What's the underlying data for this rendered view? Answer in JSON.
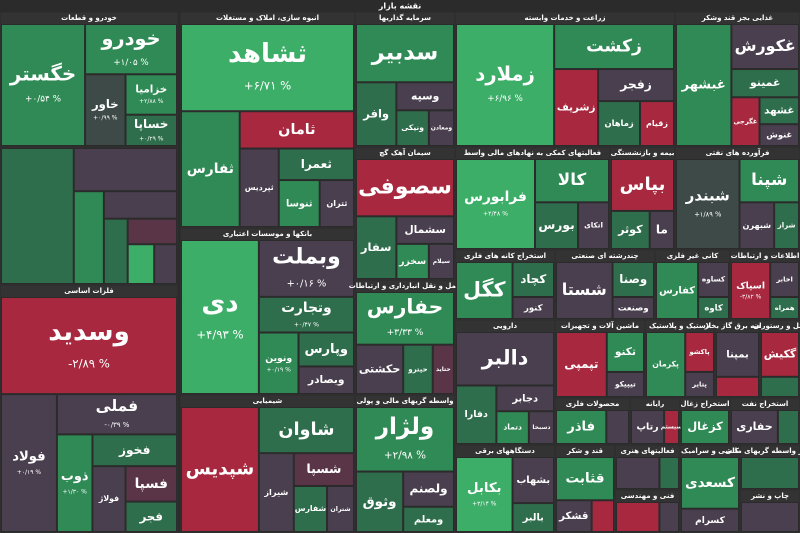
{
  "chart_data": {
    "type": "treemap",
    "title": "نقشه بازار",
    "sectors": [
      {
        "name": "خودرو و قطعات",
        "tiles": [
          {
            "name": "خگستر",
            "value": 0.54,
            "value_label": "+۰/۵۴ %",
            "color": "#2f8a55"
          },
          {
            "name": "خودرو",
            "value": 1.05,
            "value_label": "+۱/۰۵ %",
            "color": "#2f8a55"
          },
          {
            "name": "خاور",
            "value": 0.99,
            "value_label": "+۰/۹۹ %",
            "color": "#3e4a47"
          },
          {
            "name": "خزامیا",
            "value": 2.88,
            "value_label": "+۲/۸۸ %",
            "color": "#2f8a55"
          },
          {
            "name": "خساپا",
            "value": 0.29,
            "value_label": "+۰/۲۹ %",
            "color": "#2f6e4c"
          }
        ]
      },
      {
        "name": null,
        "tiles": [
          {
            "name": null,
            "color": "#2f6e4c"
          },
          {
            "name": null,
            "color": "#4a3f4f"
          },
          {
            "name": null,
            "color": "#2f8a55"
          },
          {
            "name": null,
            "color": "#4a3f4f"
          },
          {
            "name": null,
            "color": "#2f6e4c"
          },
          {
            "name": null,
            "color": "#5a3547"
          },
          {
            "name": null,
            "color": "#3cae68"
          },
          {
            "name": null,
            "color": "#4a3f4f"
          }
        ]
      },
      {
        "name": "فلزات اساسی",
        "tiles": [
          {
            "name": "وسدید",
            "value": -2.89,
            "value_label": "-۲/۸۹ %",
            "color": "#a8283f"
          },
          {
            "name": "فولاد",
            "value": 0.19,
            "value_label": "+۰/۱۹ %",
            "color": "#4a3f4f"
          },
          {
            "name": "فملی",
            "value": -0.39,
            "value_label": "-۰/۳۹ %",
            "color": "#4a3f4f"
          },
          {
            "name": "ذوب",
            "value": 1.3,
            "value_label": "+۱/۳۰ %",
            "color": "#2f8a55"
          },
          {
            "name": "فخوز",
            "color": "#2f6e4c"
          },
          {
            "name": "فولاژ",
            "color": "#4a3f4f"
          },
          {
            "name": "فسپا",
            "color": "#5a3547"
          },
          {
            "name": "فجر",
            "color": "#2f6e4c"
          }
        ]
      },
      {
        "name": "انبوه سازی، املاک و مستغلات",
        "tiles": [
          {
            "name": "ثشاهد",
            "value": 6.71,
            "value_label": "+۶/۷۱ %",
            "color": "#3cae68"
          },
          {
            "name": "ثفارس",
            "color": "#2f8a55"
          },
          {
            "name": "ثامان",
            "color": "#a8283f"
          },
          {
            "name": "ثپردیس",
            "color": "#4a3f4f"
          },
          {
            "name": "ثعمرا",
            "color": "#2f6e4c"
          },
          {
            "name": "ثنوسا",
            "color": "#2f8a55"
          },
          {
            "name": "ثتران",
            "color": "#4a3f4f"
          }
        ]
      },
      {
        "name": "بانکها و موسسات اعتباری",
        "tiles": [
          {
            "name": "دی",
            "value": 4.93,
            "value_label": "+۴/۹۳ %",
            "color": "#3cae68"
          },
          {
            "name": "وبملت",
            "value": 0.16,
            "value_label": "+۰/۱۶ %",
            "color": "#4a3f4f"
          },
          {
            "name": "وتجارت",
            "value": 0.47,
            "value_label": "+۰/۴۷ %",
            "color": "#2f6e4c"
          },
          {
            "name": "ونوین",
            "value": 0.19,
            "value_label": "+۰/۱۹ %",
            "color": "#2f8a55"
          },
          {
            "name": "وپارس",
            "color": "#2f6e4c"
          },
          {
            "name": "وبصادر",
            "color": "#4a3f4f"
          }
        ]
      },
      {
        "name": "شیمیایی",
        "tiles": [
          {
            "name": "شپدیس",
            "color": "#a8283f"
          },
          {
            "name": "شاوان",
            "color": "#2f6e4c"
          },
          {
            "name": "شیراز",
            "color": "#4a3f4f"
          },
          {
            "name": "شسپا",
            "color": "#5a3547"
          },
          {
            "name": "شفارس",
            "color": "#2f6e4c"
          },
          {
            "name": "شتران",
            "color": "#4a3f4f"
          }
        ]
      },
      {
        "name": "سرمایه گذاریها",
        "tiles": [
          {
            "name": "سدبیر",
            "color": "#2f8a55"
          },
          {
            "name": "وافر",
            "color": "#2f6e4c"
          },
          {
            "name": "وسپه",
            "color": "#4a3f4f"
          },
          {
            "name": "ونیکی",
            "color": "#2f6e4c"
          },
          {
            "name": "ومعادن",
            "color": "#4a3f4f"
          }
        ]
      },
      {
        "name": "سیمان آهک گچ",
        "tiles": [
          {
            "name": "سصوفی",
            "color": "#a8283f"
          },
          {
            "name": "سفار",
            "color": "#2f6e4c"
          },
          {
            "name": "سشمال",
            "color": "#4a3f4f"
          },
          {
            "name": "سخزر",
            "color": "#2f8a55"
          },
          {
            "name": "سیلام",
            "color": "#4a3f4f"
          }
        ]
      },
      {
        "name": "حمل و نقل انبارداری و ارتباطات",
        "tiles": [
          {
            "name": "حفارس",
            "value": 3.33,
            "value_label": "+۳/۳۳ %",
            "color": "#2f8a55"
          },
          {
            "name": "حکشتی",
            "color": "#4a3f4f"
          },
          {
            "name": "حپترو",
            "color": "#2f6e4c"
          },
          {
            "name": "حتاید",
            "color": "#5a3547"
          }
        ]
      },
      {
        "name": "واسطه گریهای مالی و پولی",
        "tiles": [
          {
            "name": "ولژار",
            "value": 2.98,
            "value_label": "+۲/۹۸ %",
            "color": "#2f8a55"
          },
          {
            "name": "وثوق",
            "color": "#2f6e4c"
          },
          {
            "name": "ولصنم",
            "color": "#4a3f4f"
          },
          {
            "name": "ومعلم",
            "color": "#2f6e4c"
          }
        ]
      },
      {
        "name": "زراعت و خدمات وابسته",
        "tiles": [
          {
            "name": "زملارد",
            "value": 6.96,
            "value_label": "+۶/۹۶ %",
            "color": "#3cae68"
          },
          {
            "name": "زکشت",
            "color": "#2f8a55"
          },
          {
            "name": "زشریف",
            "color": "#a8283f"
          },
          {
            "name": "زفجر",
            "color": "#4a3f4f"
          },
          {
            "name": "زماهان",
            "color": "#2f6e4c"
          },
          {
            "name": "زقیام",
            "color": "#a8283f"
          }
        ]
      },
      {
        "name": "فعالیتهای کمکی به نهادهای مالی واسط",
        "tiles": [
          {
            "name": "فرابورس",
            "value": 2.48,
            "value_label": "+۲/۴۸ %",
            "color": "#3cae68"
          },
          {
            "name": "کالا",
            "color": "#2f8a55"
          },
          {
            "name": "بورس",
            "color": "#2f6e4c"
          },
          {
            "name": "اتکای",
            "color": "#4a3f4f"
          }
        ]
      },
      {
        "name": "بیمه و بازنشستگی",
        "tiles": [
          {
            "name": "بپاس",
            "color": "#a8283f"
          },
          {
            "name": "کوثر",
            "color": "#2f6e4c"
          },
          {
            "name": "ما",
            "color": "#4a3f4f"
          }
        ]
      },
      {
        "name": "غذایی بجز قند وشکر",
        "tiles": [
          {
            "name": "غبشهر",
            "color": "#2f8a55"
          },
          {
            "name": "غکورش",
            "color": "#4a3f4f"
          },
          {
            "name": "غمینو",
            "color": "#2f6e4c"
          },
          {
            "name": "غگرجی",
            "color": "#a8283f"
          },
          {
            "name": "غشهد",
            "color": "#2f6e4c"
          },
          {
            "name": "غنوش",
            "color": "#4a3f4f"
          }
        ]
      },
      {
        "name": "فرآورده های نفتی",
        "tiles": [
          {
            "name": "شبندر",
            "value": 1.89,
            "value_label": "+۱/۸۹ %",
            "color": "#3e4a47"
          },
          {
            "name": "شپنا",
            "color": "#2f8a55"
          },
          {
            "name": "شبهرن",
            "color": "#4a3f4f"
          },
          {
            "name": "شراز",
            "color": "#2f6e4c"
          }
        ]
      },
      {
        "name": "استخراج کانه های فلزی",
        "tiles": [
          {
            "name": "کگل",
            "color": "#2f8a55"
          },
          {
            "name": "کچاد",
            "color": "#2f6e4c"
          },
          {
            "name": "کنور",
            "color": "#4a3f4f"
          }
        ]
      },
      {
        "name": "چندرشته ای صنعتی",
        "tiles": [
          {
            "name": "شستا",
            "color": "#4a3f4f"
          },
          {
            "name": "وصنا",
            "color": "#2f6e4c"
          },
          {
            "name": "وصنعت",
            "color": "#4a3f4f"
          }
        ]
      },
      {
        "name": "کانی غیر فلزی",
        "tiles": [
          {
            "name": "کفارس",
            "color": "#2f8a55"
          },
          {
            "name": "کساوه",
            "color": "#4a3f4f"
          },
          {
            "name": "کاوه",
            "color": "#2f6e4c"
          }
        ]
      },
      {
        "name": "اطلاعات و ارتباطات",
        "tiles": [
          {
            "name": "اسپاک",
            "value": -3.82,
            "value_label": "-۳/۸۲ %",
            "color": "#a8283f"
          },
          {
            "name": "اخابر",
            "color": "#4a3f4f"
          },
          {
            "name": "همراه",
            "color": "#2f6e4c"
          }
        ]
      },
      {
        "name": "دارویی",
        "tiles": [
          {
            "name": "دالبر",
            "color": "#4a3f4f"
          },
          {
            "name": "دفارا",
            "color": "#2f6e4c"
          },
          {
            "name": "دجابر",
            "color": "#4a3f4f"
          },
          {
            "name": "دتماد",
            "color": "#2f8a55"
          },
          {
            "name": "دسبحا",
            "color": "#4a3f4f"
          }
        ]
      },
      {
        "name": "ماشین آلات و تجهیزات",
        "tiles": [
          {
            "name": "تپمپی",
            "color": "#a8283f"
          },
          {
            "name": "تکنو",
            "color": "#2f8a55"
          },
          {
            "name": "تیپیکو",
            "color": "#4a3f4f"
          }
        ]
      },
      {
        "name": "لاستیک و پلاستیک",
        "tiles": [
          {
            "name": "پکرمان",
            "color": "#2f8a55"
          },
          {
            "name": "پاکشو",
            "color": "#a8283f"
          },
          {
            "name": "پتایر",
            "color": "#4a3f4f"
          }
        ]
      },
      {
        "name": "عرضه برق گاز بخار",
        "tiles": [
          {
            "name": "بمپنا",
            "color": "#4a3f4f"
          },
          {
            "name": null,
            "color": "#a8283f"
          }
        ]
      },
      {
        "name": "هتل و رستوران",
        "tiles": [
          {
            "name": "گکیش",
            "color": "#a8283f"
          },
          {
            "name": null,
            "color": "#2f6e4c"
          }
        ]
      },
      {
        "name": "محصولات فلزی",
        "tiles": [
          {
            "name": "فاذر",
            "color": "#2f8a55"
          },
          {
            "name": null,
            "color": "#4a3f4f"
          }
        ]
      },
      {
        "name": "رایانه",
        "tiles": [
          {
            "name": "رتاپ",
            "color": "#4a3f4f"
          },
          {
            "name": "سیستم",
            "color": "#a8283f"
          }
        ]
      },
      {
        "name": "استخراج زغال",
        "tiles": [
          {
            "name": "کزغال",
            "color": "#2f8a55"
          }
        ]
      },
      {
        "name": "استخراج نفت",
        "tiles": [
          {
            "name": "حفاری",
            "color": "#4a3f4f"
          },
          {
            "name": null,
            "color": "#2f6e4c"
          }
        ]
      },
      {
        "name": "دستگاههای برقی",
        "tiles": [
          {
            "name": "بکابل",
            "value": 3.14,
            "value_label": "+۳/۱۴ %",
            "color": "#3cae68"
          },
          {
            "name": "بشهاب",
            "color": "#4a3f4f"
          },
          {
            "name": "بالبر",
            "color": "#2f6e4c"
          }
        ]
      },
      {
        "name": "قند و شکر",
        "tiles": [
          {
            "name": "قثابت",
            "color": "#2f8a55"
          },
          {
            "name": "قشکر",
            "color": "#4a3f4f"
          },
          {
            "name": null,
            "color": "#a8283f"
          }
        ]
      },
      {
        "name": "فعالیتهای هنری",
        "tiles": [
          {
            "name": null,
            "color": "#4a3f4f"
          },
          {
            "name": null,
            "color": "#2f6e4c"
          }
        ]
      },
      {
        "name": "فنی و مهندسی",
        "tiles": [
          {
            "name": null,
            "color": "#a8283f"
          },
          {
            "name": null,
            "color": "#4a3f4f"
          }
        ]
      },
      {
        "name": "کاشی و سرامیک",
        "tiles": [
          {
            "name": "کسعدی",
            "color": "#2f8a55"
          },
          {
            "name": "کسرام",
            "color": "#4a3f4f"
          }
        ]
      },
      {
        "name": "سایر واسطه گریهای مالی",
        "tiles": [
          {
            "name": null,
            "color": "#2f6e4c"
          }
        ]
      },
      {
        "name": "چاپ و نشر",
        "tiles": [
          {
            "name": null,
            "color": "#4a3f4f"
          }
        ]
      }
    ]
  }
}
